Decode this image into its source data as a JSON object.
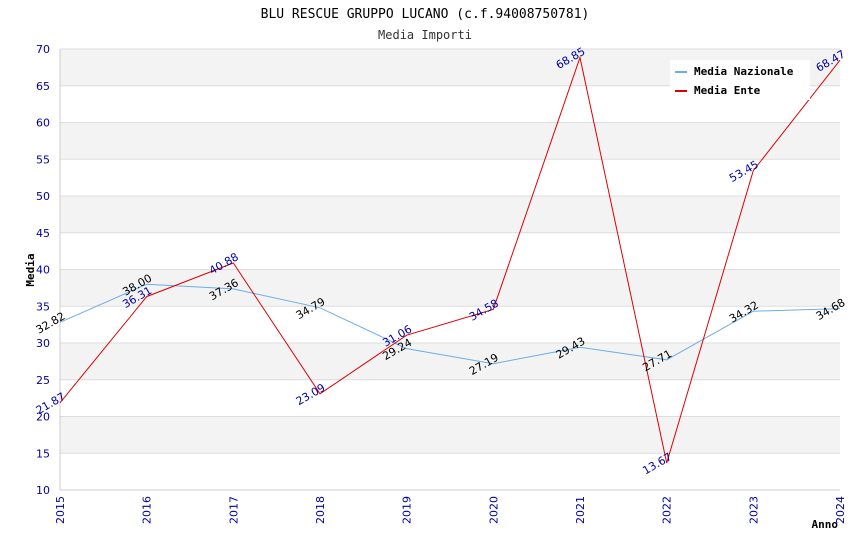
{
  "chart_data": {
    "type": "line",
    "title": "BLU RESCUE GRUPPO LUCANO (c.f.94008750781)",
    "subtitle": "Media Importi",
    "xlabel": "Anno",
    "ylabel": "Media",
    "ylim": [
      10,
      70
    ],
    "yticks": [
      10,
      15,
      20,
      25,
      30,
      35,
      40,
      45,
      50,
      55,
      60,
      65,
      70
    ],
    "categories": [
      "2015",
      "2016",
      "2017",
      "2018",
      "2019",
      "2020",
      "2021",
      "2022",
      "2023",
      "2024"
    ],
    "grid": true,
    "legend_position": "top-right",
    "series": [
      {
        "name": "Media Nazionale",
        "color": "#6aaee8",
        "values": [
          32.82,
          38.0,
          37.36,
          34.79,
          29.24,
          27.19,
          29.43,
          27.71,
          34.32,
          34.68
        ],
        "labels": [
          "32.82",
          "38.00",
          "37.36",
          "34.79",
          "29.24",
          "27.19",
          "29.43",
          "27.71",
          "34.32",
          "34.68"
        ]
      },
      {
        "name": "Media Ente",
        "color": "#e00000",
        "values": [
          21.87,
          36.31,
          40.88,
          23.09,
          31.06,
          34.58,
          68.85,
          13.67,
          53.45,
          68.47
        ],
        "labels": [
          "21.87",
          "36.31",
          "40.88",
          "23.09",
          "31.06",
          "34.58",
          "68.85",
          "13.67",
          "53.45",
          "68.47"
        ]
      }
    ]
  }
}
